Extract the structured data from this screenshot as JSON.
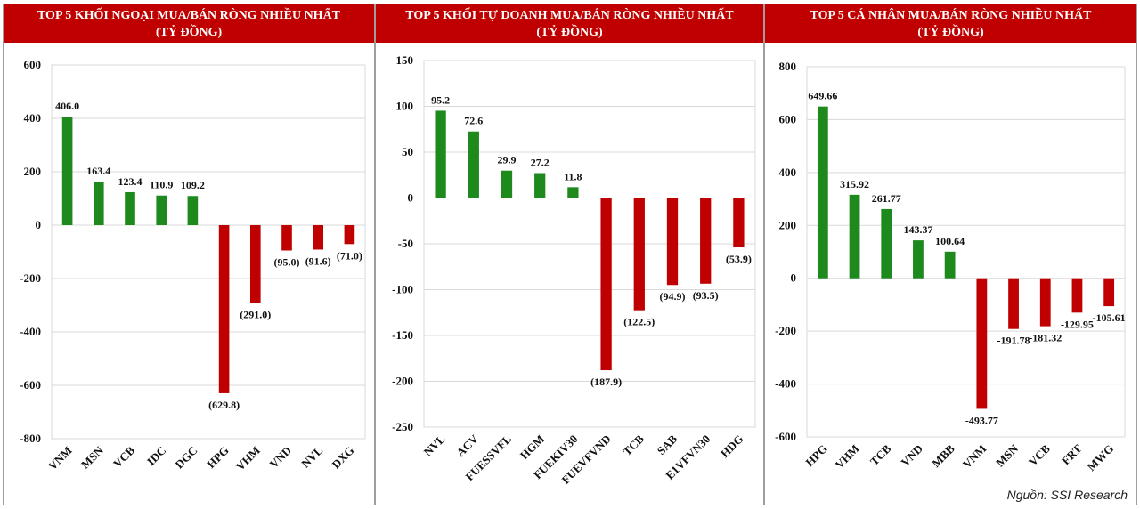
{
  "colors": {
    "positive": "#1e8a1e",
    "negative": "#c00000",
    "header_bg": "#c00000",
    "grid": "#d9d9d9"
  },
  "source": "Nguồn: SSI Research",
  "chart_data": [
    {
      "type": "bar",
      "title": "TOP 5 KHỐI NGOẠI MUA/BÁN RÒNG NHIỀU NHẤT",
      "subtitle": "(TỶ ĐỒNG)",
      "categories": [
        "VNM",
        "MSN",
        "VCB",
        "IDC",
        "DGC",
        "HPG",
        "VHM",
        "VND",
        "NVL",
        "DXG"
      ],
      "values": [
        406.0,
        163.4,
        123.4,
        110.9,
        109.2,
        -629.8,
        -291.0,
        -95.0,
        -91.6,
        -71.0
      ],
      "labels": [
        "406.0",
        "163.4",
        "123.4",
        "110.9",
        "109.2",
        "(629.8)",
        "(291.0)",
        "(95.0)",
        "(91.6)",
        "(71.0)"
      ],
      "ylim": [
        -800,
        600
      ],
      "yticks": [
        600,
        400,
        200,
        0,
        -200,
        -400,
        -600,
        -800
      ],
      "ytick_labels": [
        "600",
        "400",
        "200",
        "0",
        "-200",
        "-400",
        "-600",
        "-800"
      ],
      "grid": true
    },
    {
      "type": "bar",
      "title": "TOP 5 KHỐI TỰ DOANH MUA/BÁN RÒNG NHIỀU NHẤT",
      "subtitle": "(TỶ ĐỒNG)",
      "categories": [
        "NVL",
        "ACV",
        "FUESSVFL",
        "HGM",
        "FUEKIV30",
        "FUEVFVND",
        "TCB",
        "SAB",
        "E1VFVN30",
        "HDG"
      ],
      "values": [
        95.2,
        72.6,
        29.9,
        27.2,
        11.8,
        -187.9,
        -122.5,
        -94.9,
        -93.5,
        -53.9
      ],
      "labels": [
        "95.2",
        "72.6",
        "29.9",
        "27.2",
        "11.8",
        "(187.9)",
        "(122.5)",
        "(94.9)",
        "(93.5)",
        "(53.9)"
      ],
      "ylim": [
        -250,
        150
      ],
      "yticks": [
        150,
        100,
        50,
        0,
        -50,
        -100,
        -150,
        -200,
        -250
      ],
      "ytick_labels": [
        "150",
        "100",
        "50",
        "0",
        "-50",
        "-100",
        "-150",
        "-200",
        "-250"
      ],
      "grid": true
    },
    {
      "type": "bar",
      "title": "TOP 5 CÁ NHÂN MUA/BÁN RÒNG NHIỀU NHẤT",
      "subtitle": "(TỶ ĐỒNG)",
      "categories": [
        "HPG",
        "VHM",
        "TCB",
        "VND",
        "MBB",
        "VNM",
        "MSN",
        "VCB",
        "FRT",
        "MWG"
      ],
      "values": [
        649.66,
        315.92,
        261.77,
        143.37,
        100.64,
        -493.77,
        -191.78,
        -181.32,
        -129.95,
        -105.61
      ],
      "labels": [
        "649.66",
        "315.92",
        "261.77",
        "143.37",
        "100.64",
        "-493.77",
        "-191.78",
        "-181.32",
        "-129.95",
        "-105.61"
      ],
      "ylim": [
        -600,
        800
      ],
      "yticks": [
        800,
        600,
        400,
        200,
        0,
        -200,
        -400,
        -600
      ],
      "ytick_labels": [
        "800",
        "600",
        "400",
        "200",
        "0",
        "-200",
        "-400",
        "-600"
      ],
      "grid": true
    }
  ]
}
